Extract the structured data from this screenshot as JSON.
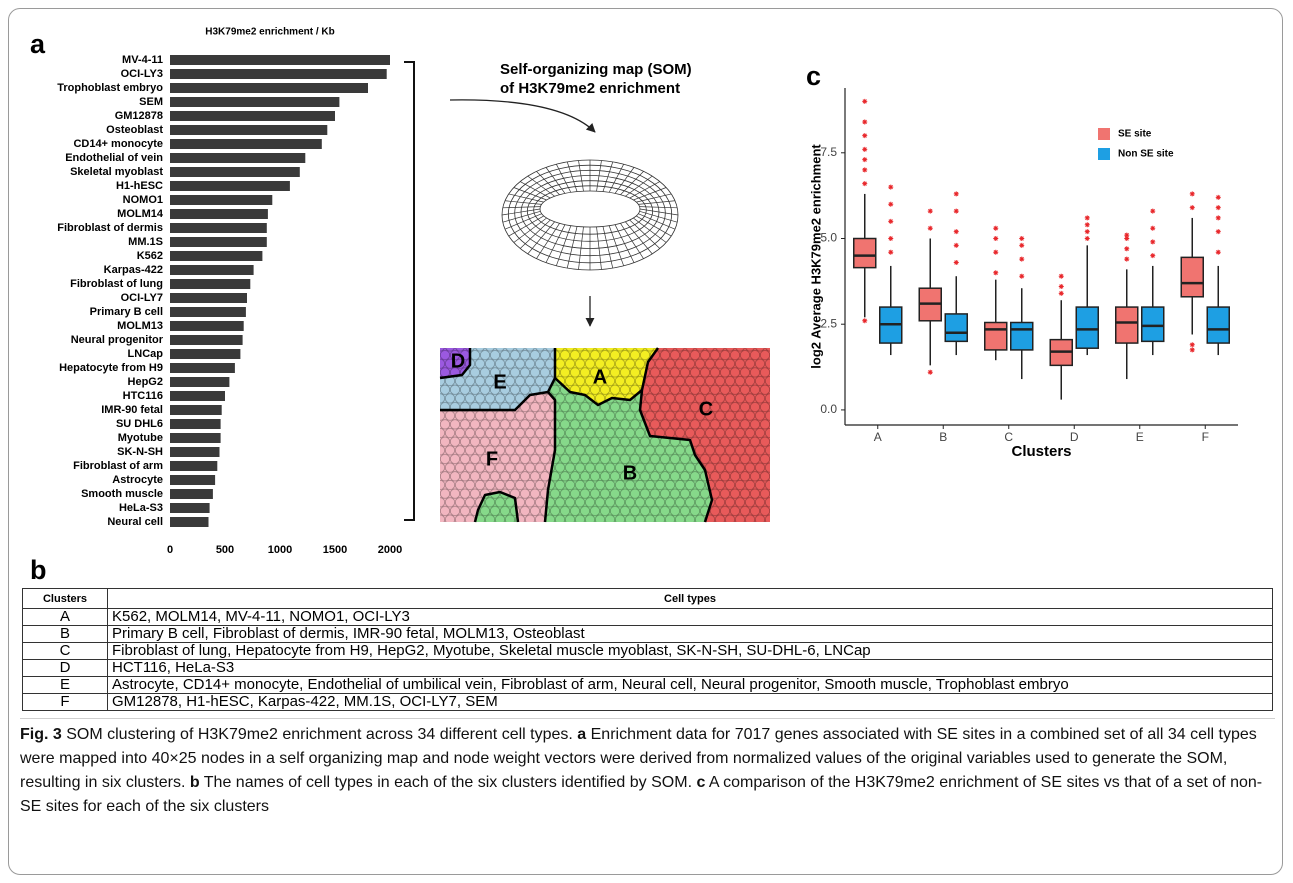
{
  "panels": [
    "a",
    "b",
    "c"
  ],
  "som": {
    "title": [
      "Self-organizing map (SOM)",
      "of H3K79me2 enrichment"
    ],
    "clusters": [
      "A",
      "B",
      "C",
      "D",
      "E",
      "F"
    ]
  },
  "chart_data": [
    {
      "type": "hbar",
      "title": "H3K79me2 enrichment / Kb",
      "color": "#3a3a3a",
      "categories": [
        "MV-4-11",
        "OCI-LY3",
        "Trophoblast embryo",
        "SEM",
        "GM12878",
        "Osteoblast",
        "CD14+ monocyte",
        "Endothelial of vein",
        "Skeletal myoblast",
        "H1-hESC",
        "NOMO1",
        "MOLM14",
        "Fibroblast of dermis",
        "MM.1S",
        "K562",
        "Karpas-422",
        "Fibroblast of lung",
        "OCI-LY7",
        "Primary B cell",
        "MOLM13",
        "Neural progenitor",
        "LNCap",
        "Hepatocyte from H9",
        "HepG2",
        "HTC116",
        "IMR-90 fetal",
        "SU DHL6",
        "Myotube",
        "SK-N-SH",
        "Fibroblast of arm",
        "Astrocyte",
        "Smooth muscle",
        "HeLa-S3",
        "Neural cell"
      ],
      "values": [
        2000,
        1970,
        1800,
        1540,
        1500,
        1430,
        1380,
        1230,
        1180,
        1090,
        930,
        890,
        880,
        880,
        840,
        760,
        730,
        700,
        690,
        670,
        660,
        640,
        590,
        540,
        500,
        470,
        460,
        460,
        450,
        430,
        410,
        390,
        360,
        350
      ],
      "xlim": [
        0,
        2050
      ],
      "xticks": [
        0,
        500,
        1000,
        1500,
        2000
      ],
      "grid": false
    },
    {
      "type": "box",
      "y_label": "log2 Average H3K79me2 enrichment",
      "x_label": "Clusters",
      "categories": [
        "A",
        "B",
        "C",
        "D",
        "E",
        "F"
      ],
      "ylim": [
        -0.44,
        9.39
      ],
      "yticks": [
        {
          "value": 0,
          "label": "0.0"
        },
        {
          "value": 2.5,
          "label": "2.5"
        },
        {
          "value": 5,
          "label": "5.0"
        },
        {
          "value": 7.5,
          "label": "7.5"
        }
      ],
      "legend": "top-right",
      "grid": false,
      "series": [
        {
          "name": "SE site",
          "color": "#f07470",
          "values": [
            {
              "min": 2.7,
              "q1": 4.15,
              "median": 4.5,
              "q3": 5.0,
              "max": 6.3,
              "outliers": [
                6.6,
                7.0,
                7.3,
                7.6,
                8.0,
                8.4,
                9.0,
                2.6
              ]
            },
            {
              "min": 1.3,
              "q1": 2.6,
              "median": 3.1,
              "q3": 3.55,
              "max": 5.0,
              "outliers": [
                5.3,
                5.8,
                1.1
              ]
            },
            {
              "min": 1.45,
              "q1": 1.75,
              "median": 2.35,
              "q3": 2.55,
              "max": 3.8,
              "outliers": [
                4.0,
                4.6,
                5.0,
                5.3
              ]
            },
            {
              "min": 0.3,
              "q1": 1.3,
              "median": 1.7,
              "q3": 2.05,
              "max": 3.2,
              "outliers": [
                3.4,
                3.6,
                3.9
              ]
            },
            {
              "min": 0.9,
              "q1": 1.95,
              "median": 2.55,
              "q3": 3.0,
              "max": 4.1,
              "outliers": [
                4.4,
                4.7,
                5.0,
                5.1
              ]
            },
            {
              "min": 2.2,
              "q1": 3.3,
              "median": 3.7,
              "q3": 4.45,
              "max": 5.6,
              "outliers": [
                5.9,
                6.3,
                1.9,
                1.75
              ]
            }
          ]
        },
        {
          "name": "Non SE site",
          "color": "#1e9fe3",
          "values": [
            {
              "min": 1.6,
              "q1": 1.95,
              "median": 2.5,
              "q3": 3.0,
              "max": 4.2,
              "outliers": [
                4.6,
                5.0,
                5.5,
                6.0,
                6.5
              ]
            },
            {
              "min": 1.6,
              "q1": 2.0,
              "median": 2.25,
              "q3": 2.8,
              "max": 3.9,
              "outliers": [
                4.3,
                4.8,
                5.2,
                5.8,
                6.3
              ]
            },
            {
              "min": 0.9,
              "q1": 1.75,
              "median": 2.35,
              "q3": 2.55,
              "max": 3.55,
              "outliers": [
                3.9,
                4.4,
                4.8,
                5.0
              ]
            },
            {
              "min": 1.6,
              "q1": 1.8,
              "median": 2.35,
              "q3": 3.0,
              "max": 4.8,
              "outliers": [
                5.0,
                5.2,
                5.4,
                5.6
              ]
            },
            {
              "min": 1.6,
              "q1": 2.0,
              "median": 2.45,
              "q3": 3.0,
              "max": 4.2,
              "outliers": [
                4.5,
                4.9,
                5.3,
                5.8
              ]
            },
            {
              "min": 1.6,
              "q1": 1.95,
              "median": 2.35,
              "q3": 3.0,
              "max": 4.2,
              "outliers": [
                4.6,
                5.2,
                5.6,
                5.9,
                6.2
              ]
            }
          ]
        }
      ]
    }
  ],
  "table": {
    "header": [
      "Clusters",
      "Cell types"
    ],
    "rows": [
      [
        "A",
        "K562, MOLM14, MV-4-11, NOMO1, OCI-LY3"
      ],
      [
        "B",
        "Primary B cell, Fibroblast of dermis, IMR-90 fetal, MOLM13, Osteoblast"
      ],
      [
        "C",
        "Fibroblast of lung, Hepatocyte from H9, HepG2, Myotube, Skeletal muscle myoblast, SK-N-SH, SU-DHL-6, LNCap"
      ],
      [
        "D",
        "HCT116, HeLa-S3"
      ],
      [
        "E",
        "Astrocyte, CD14+ monocyte, Endothelial of umbilical vein, Fibroblast of arm, Neural cell, Neural progenitor, Smooth muscle, Trophoblast embryo"
      ],
      [
        "F",
        "GM12878, H1-hESC, Karpas-422, MM.1S, OCI-LY7, SEM"
      ]
    ]
  },
  "caption": {
    "parts": [
      "Fig. 3",
      " SOM clustering of H3K79me2 enrichment across 34 different cell types. ",
      "a",
      " Enrichment data for 7017 genes associated with SE sites in a combined set of all 34 cell types were mapped into 40×25 nodes in a self organizing map and node weight vectors were derived from normalized values of the original variables used to generate the SOM, resulting in six clusters. ",
      "b",
      " The names of cell types in each of the six clusters identified by SOM. ",
      "c",
      " A comparison of the H3K79me2 enrichment of SE sites vs that of a set of non-SE sites for each of the six clusters"
    ]
  }
}
